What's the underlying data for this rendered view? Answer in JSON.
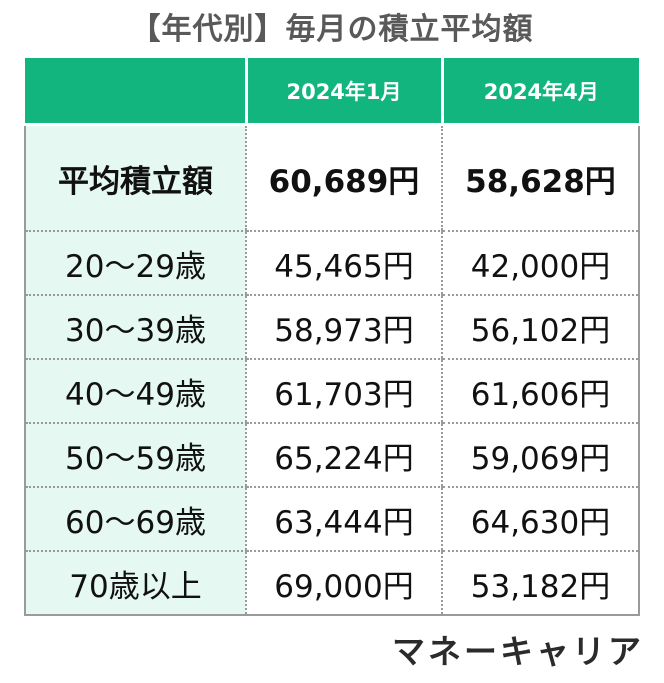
{
  "title": "【年代別】毎月の積立平均額",
  "table": {
    "columns": [
      "",
      "2024年1月",
      "2024年4月"
    ],
    "average_row": {
      "label": "平均積立額",
      "values": [
        "60,689円",
        "58,628円"
      ]
    },
    "rows": [
      {
        "label": "20～29歳",
        "values": [
          "45,465円",
          "42,000円"
        ]
      },
      {
        "label": "30～39歳",
        "values": [
          "58,973円",
          "56,102円"
        ]
      },
      {
        "label": "40～49歳",
        "values": [
          "61,703円",
          "61,606円"
        ]
      },
      {
        "label": "50～59歳",
        "values": [
          "65,224円",
          "59,069円"
        ]
      },
      {
        "label": "60～69歳",
        "values": [
          "63,444円",
          "64,630円"
        ]
      },
      {
        "label": "70歳以上",
        "values": [
          "69,000円",
          "53,182円"
        ]
      }
    ]
  },
  "brand": "マネーキャリア",
  "colors": {
    "header_bg": "#13b57f",
    "label_bg": "#e5f8f1",
    "title_text": "#595959"
  }
}
